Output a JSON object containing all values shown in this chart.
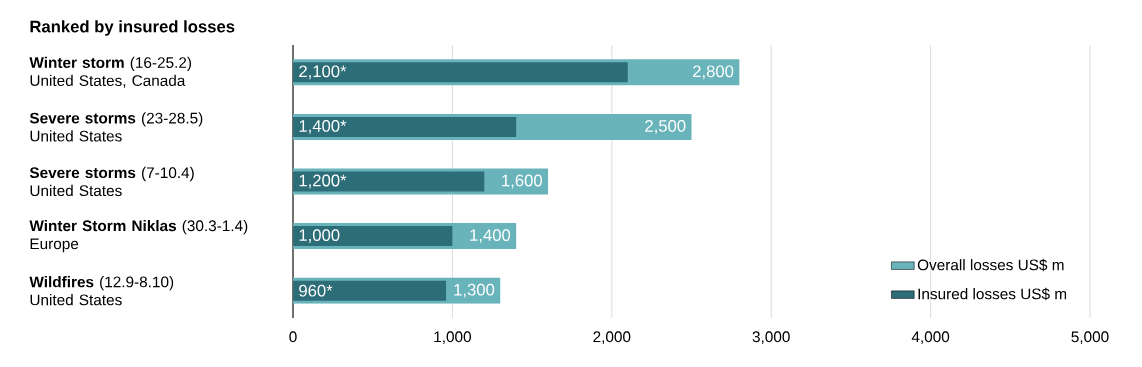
{
  "chart_data": {
    "type": "bar",
    "orientation": "horizontal",
    "title": "Ranked by insured losses",
    "categories": [
      "**Winter storm** (16-25.2)\nUnited States, Canada",
      "**Severe storms** (23-28.5)\nUnited States",
      "**Severe storms** (7-10.4)\nUnited States",
      "**Winter Storm Niklas** (30.3-1.4)\nEurope",
      "**Wildfires** (12.9-8.10)\nUnited States"
    ],
    "series": [
      {
        "name": "Overall losses US$ m",
        "color": "#69b3ba",
        "values": [
          2800,
          2500,
          1600,
          1400,
          1300
        ],
        "value_labels": [
          "2,800",
          "2,500",
          "1,600",
          "1,400",
          "1,300"
        ]
      },
      {
        "name": "Insured losses US$ m",
        "color": "#2d6d78",
        "values": [
          2100,
          1400,
          1200,
          1000,
          960
        ],
        "value_labels": [
          "2,100*",
          "1,400*",
          "1,200*",
          "1,000",
          "960*"
        ]
      }
    ],
    "xlim": [
      0,
      5000
    ],
    "xticks": [
      0,
      {
        "value": 1000,
        "label": "1,000"
      },
      {
        "value": 2000,
        "label": "2,000"
      },
      {
        "value": 3000,
        "label": "3,000"
      },
      {
        "value": 4000,
        "label": "4,000"
      },
      {
        "value": 5000,
        "label": "5,000"
      }
    ],
    "grid": "x",
    "legend": "bottom right"
  }
}
